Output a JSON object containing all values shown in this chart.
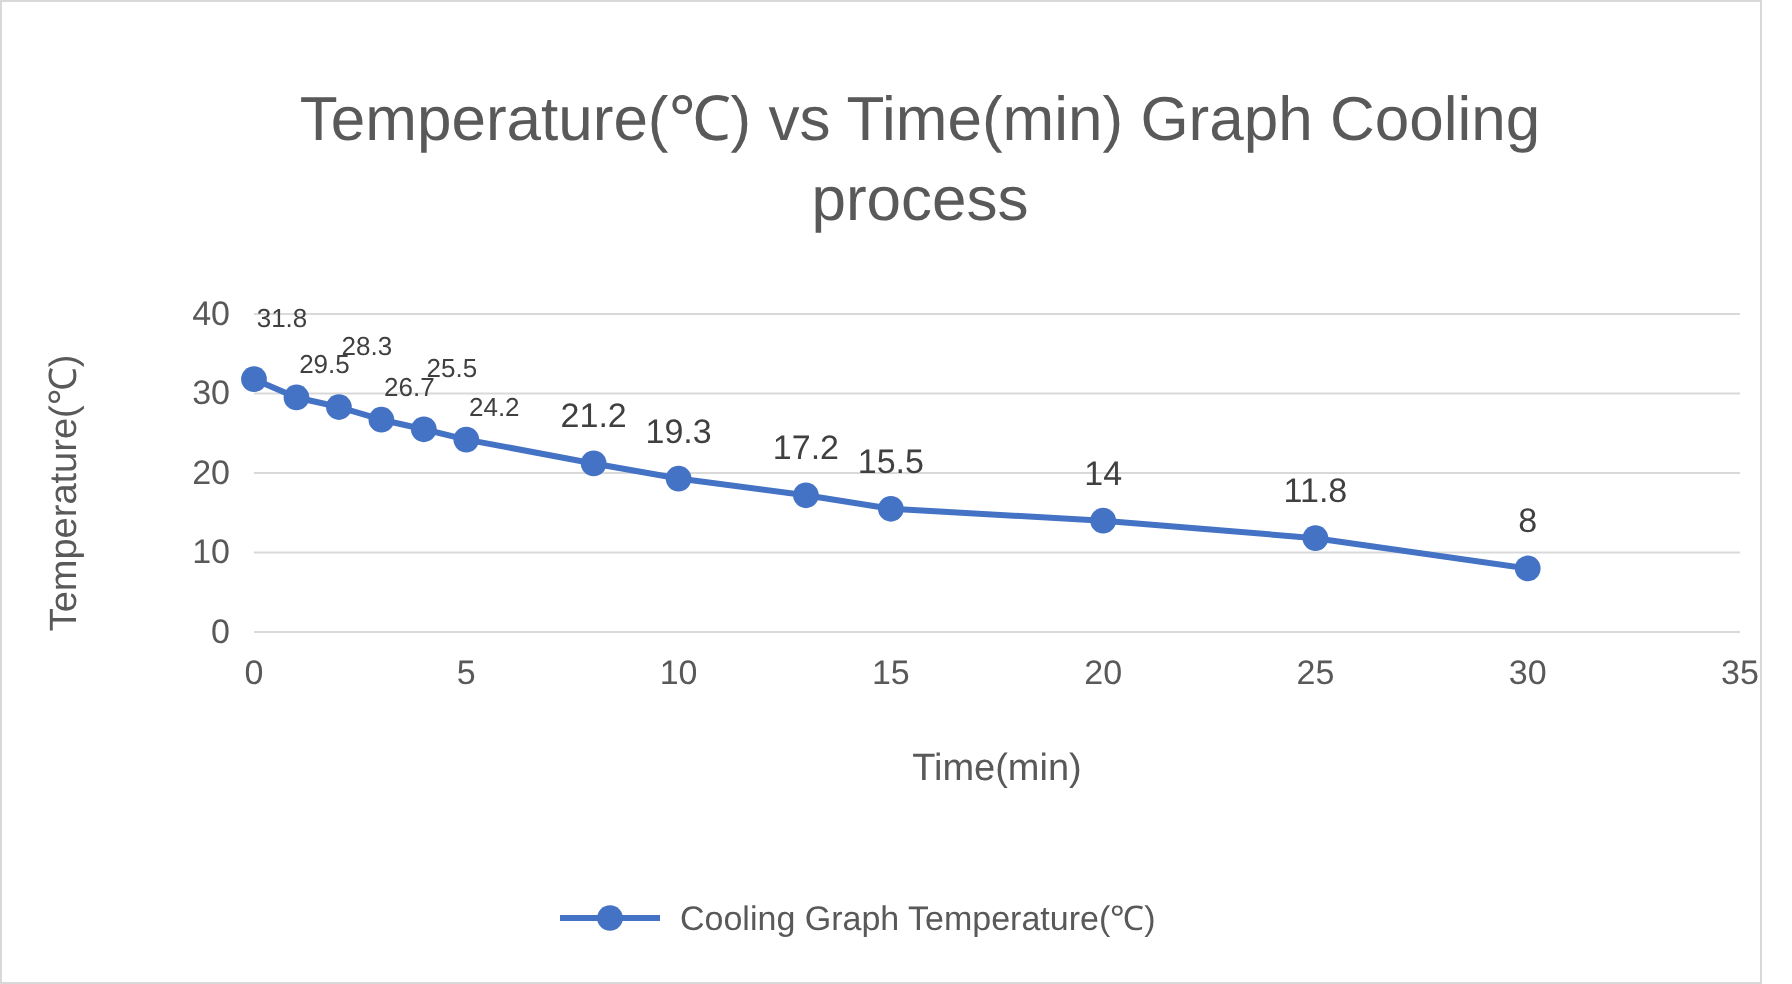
{
  "chart_data": {
    "type": "line",
    "title": "Temperature(℃) vs Time(min) Graph Cooling process",
    "xlabel": "Time(min)",
    "ylabel": "Temperature(℃)",
    "x": [
      0,
      1,
      2,
      3,
      4,
      5,
      8,
      10,
      13,
      15,
      20,
      25,
      30
    ],
    "series": [
      {
        "name": "Cooling Graph Temperature(℃)",
        "color": "#4472c4",
        "values": [
          31.8,
          29.5,
          28.3,
          26.7,
          25.5,
          24.2,
          21.2,
          19.3,
          17.2,
          15.5,
          14,
          11.8,
          8
        ]
      }
    ],
    "xlim": [
      0,
      35
    ],
    "xticks": [
      0,
      5,
      10,
      15,
      20,
      25,
      30,
      35
    ],
    "ylim": [
      0,
      40
    ],
    "yticks": [
      0,
      10,
      20,
      30,
      40
    ],
    "grid": "y",
    "legend": "bottom",
    "marker": "circle",
    "line_style": "solid",
    "data_labels": true
  }
}
